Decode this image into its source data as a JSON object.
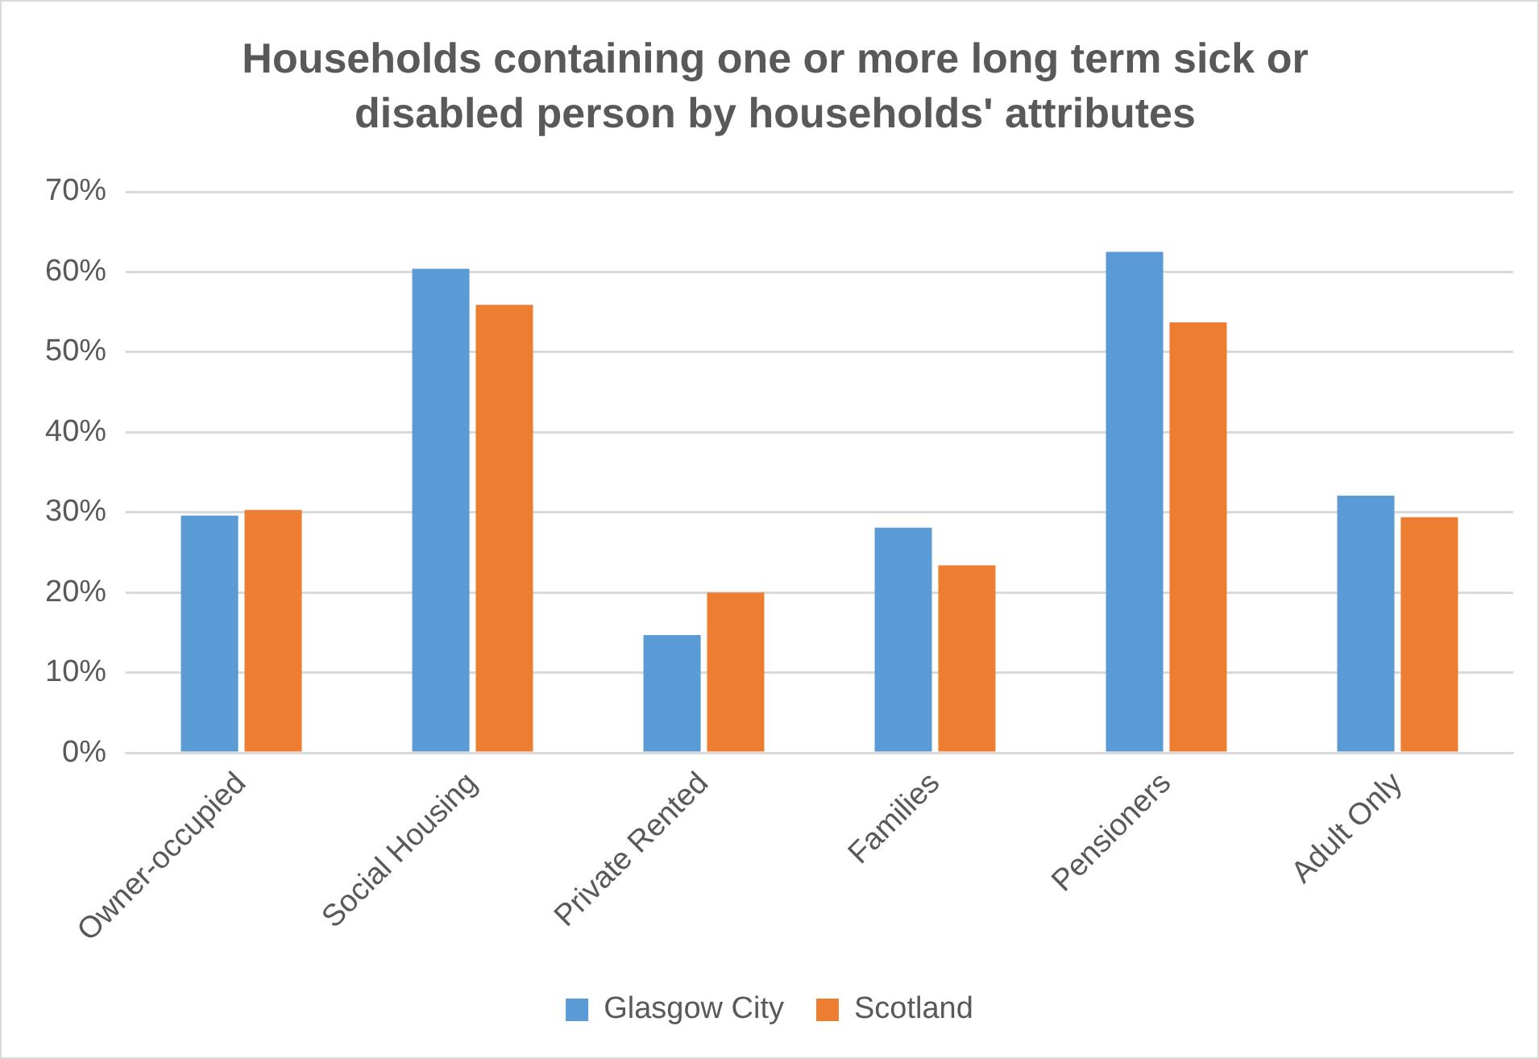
{
  "chart_data": {
    "type": "bar",
    "title": "Households containing one or more long term sick or disabled person by households' attributes",
    "categories": [
      "Owner-occupied",
      "Social Housing",
      "Private Rented",
      "Families",
      "Pensioners",
      "Adult Only"
    ],
    "series": [
      {
        "name": "Glasgow City",
        "color": "#5b9bd5",
        "values": [
          29.6,
          60.4,
          14.7,
          28.1,
          62.5,
          32.1
        ]
      },
      {
        "name": "Scotland",
        "color": "#ed7d31",
        "values": [
          30.3,
          55.9,
          20.0,
          23.4,
          53.7,
          29.4
        ]
      }
    ],
    "ylim": [
      0,
      70
    ],
    "yticks": [
      {
        "value": 0,
        "label": "0%"
      },
      {
        "value": 10,
        "label": "10%"
      },
      {
        "value": 20,
        "label": "20%"
      },
      {
        "value": 30,
        "label": "30%"
      },
      {
        "value": 40,
        "label": "40%"
      },
      {
        "value": 50,
        "label": "50%"
      },
      {
        "value": 60,
        "label": "60%"
      },
      {
        "value": 70,
        "label": "70%"
      }
    ],
    "grid": "y",
    "legend": "bottom"
  }
}
